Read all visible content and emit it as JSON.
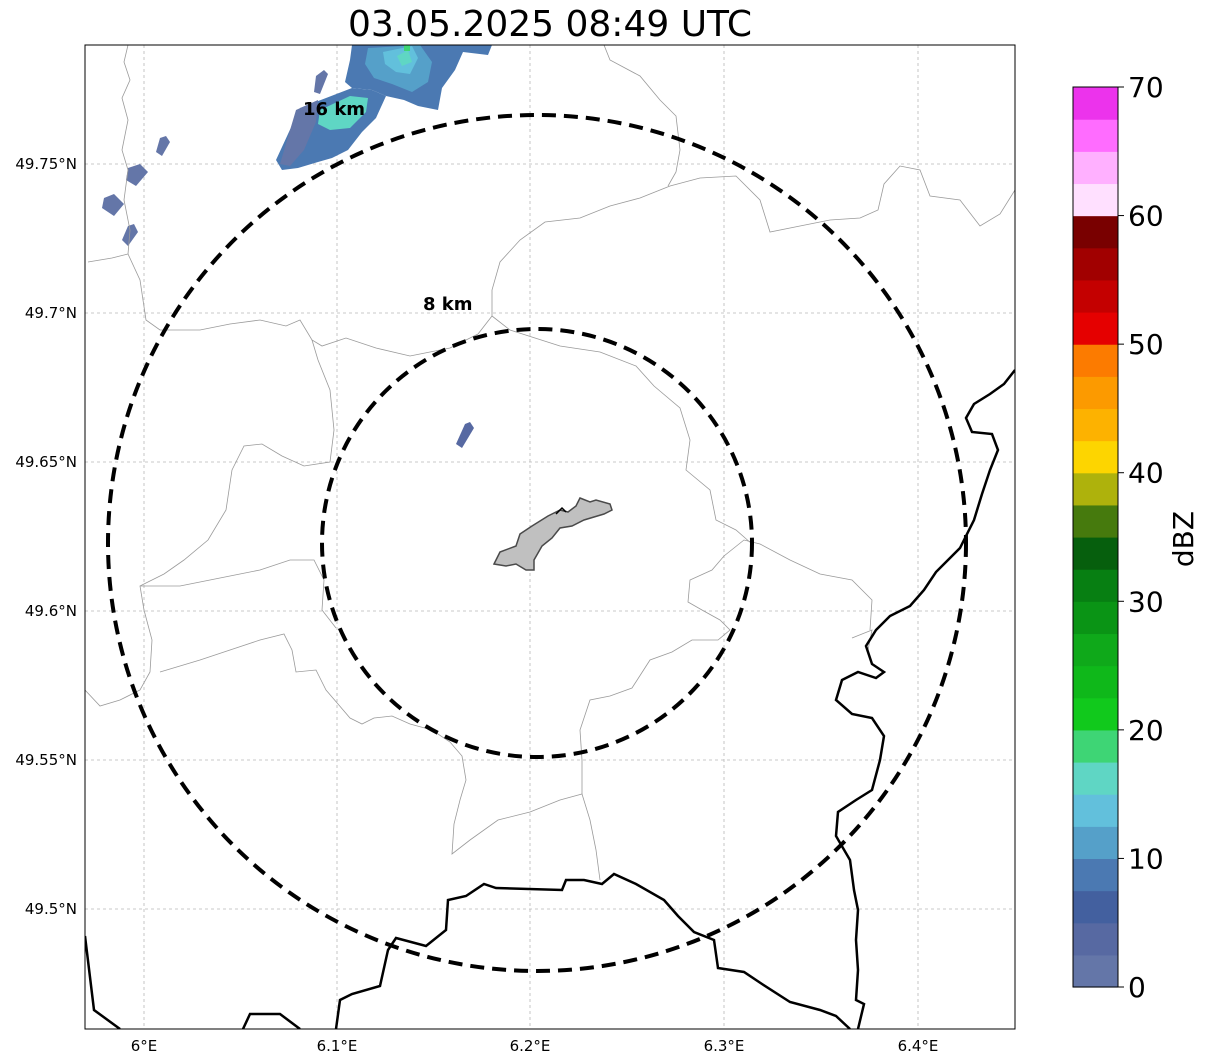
{
  "title": "03.05.2025 08:49 UTC",
  "map": {
    "lat_ticks": [
      "49.75°N",
      "49.7°N",
      "49.65°N",
      "49.6°N",
      "49.55°N",
      "49.5°N"
    ],
    "lon_ticks": [
      "6°E",
      "6.1°E",
      "6.2°E",
      "6.3°E",
      "6.4°E"
    ],
    "range_rings": [
      {
        "label": "8 km",
        "radius_km": 8
      },
      {
        "label": "16 km",
        "radius_km": 16
      }
    ],
    "center_marker": "gray-city-outline",
    "gridlines": true,
    "line_colors": {
      "borders": "#000000",
      "admin_boundaries": "#9a9a9a",
      "rings": "#000000",
      "city_fill": "#c0c0c0"
    }
  },
  "colorbar": {
    "label": "dBZ",
    "min": 0,
    "max": 70,
    "ticks": [
      "0",
      "10",
      "20",
      "30",
      "40",
      "50",
      "60",
      "70"
    ],
    "colors": [
      "#6476a8",
      "#5769a2",
      "#43609f",
      "#4b79b2",
      "#55a0c9",
      "#62c0dc",
      "#5fd6c4",
      "#3ed575",
      "#11c91c",
      "#0fb81a",
      "#0fa91a",
      "#0a9415",
      "#077f12",
      "#065f0d",
      "#467a0d",
      "#aeb20c",
      "#fdd500",
      "#fdb200",
      "#fc9a00",
      "#fc7b00",
      "#e50000",
      "#c40000",
      "#a10000",
      "#790000",
      "#ffe0ff",
      "#ffb0ff",
      "#ff6cff",
      "#ec33ec"
    ],
    "placement": "right"
  }
}
